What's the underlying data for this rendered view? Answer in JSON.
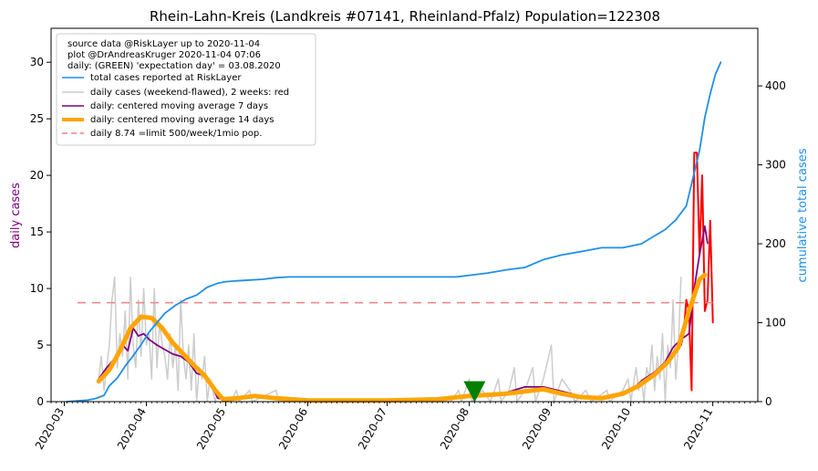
{
  "chart_data": {
    "type": "line",
    "title": "Rhein-Lahn-Kreis (Landkreis #07141, Rheinland-Pfalz) Population=122308",
    "ylabel_left": "daily cases",
    "ylabel_right": "cumulative total cases",
    "x_range": [
      "2020-02-25",
      "2020-11-18"
    ],
    "x_ticks": [
      "2020-03",
      "2020-04",
      "2020-05",
      "2020-06",
      "2020-07",
      "2020-08",
      "2020-09",
      "2020-10",
      "2020-11"
    ],
    "y_left_range": [
      0,
      33
    ],
    "y_left_ticks": [
      0,
      5,
      10,
      15,
      20,
      25,
      30
    ],
    "y_right_range": [
      0,
      473
    ],
    "y_right_ticks": [
      0,
      100,
      200,
      300,
      400
    ],
    "legend_info": [
      "source data @RiskLayer up to 2020-11-04",
      "plot @DrAndreasKruger 2020-11-04 07:06",
      "daily: (GREEN) 'expectation day' = 03.08.2020"
    ],
    "legend_placement": "top-left",
    "colors": {
      "total": "#1f8fe8",
      "daily": "#cccccc",
      "daily_recent": "#ff0000",
      "ma7": "#800080",
      "ma14": "#ffa500",
      "limit": "#f08080",
      "marker": "#008000"
    },
    "series": [
      {
        "name": "total cases reported at RiskLayer",
        "axis": "right",
        "points": [
          [
            "2020-03-02",
            0
          ],
          [
            "2020-03-10",
            2
          ],
          [
            "2020-03-13",
            4
          ],
          [
            "2020-03-16",
            8
          ],
          [
            "2020-03-18",
            20
          ],
          [
            "2020-03-21",
            30
          ],
          [
            "2020-03-24",
            45
          ],
          [
            "2020-03-27",
            58
          ],
          [
            "2020-03-30",
            72
          ],
          [
            "2020-04-02",
            88
          ],
          [
            "2020-04-05",
            100
          ],
          [
            "2020-04-08",
            112
          ],
          [
            "2020-04-12",
            122
          ],
          [
            "2020-04-16",
            130
          ],
          [
            "2020-04-20",
            135
          ],
          [
            "2020-04-24",
            145
          ],
          [
            "2020-04-28",
            150
          ],
          [
            "2020-05-01",
            152
          ],
          [
            "2020-05-05",
            153
          ],
          [
            "2020-05-10",
            154
          ],
          [
            "2020-05-15",
            155
          ],
          [
            "2020-05-20",
            157
          ],
          [
            "2020-05-25",
            158
          ],
          [
            "2020-06-01",
            158
          ],
          [
            "2020-06-15",
            158
          ],
          [
            "2020-07-01",
            158
          ],
          [
            "2020-07-15",
            158
          ],
          [
            "2020-07-27",
            158
          ],
          [
            "2020-08-01",
            160
          ],
          [
            "2020-08-08",
            163
          ],
          [
            "2020-08-15",
            167
          ],
          [
            "2020-08-22",
            170
          ],
          [
            "2020-08-29",
            180
          ],
          [
            "2020-09-05",
            186
          ],
          [
            "2020-09-12",
            190
          ],
          [
            "2020-09-20",
            195
          ],
          [
            "2020-09-28",
            195
          ],
          [
            "2020-10-05",
            200
          ],
          [
            "2020-10-10",
            210
          ],
          [
            "2020-10-14",
            218
          ],
          [
            "2020-10-18",
            230
          ],
          [
            "2020-10-22",
            248
          ],
          [
            "2020-10-25",
            290
          ],
          [
            "2020-10-27",
            318
          ],
          [
            "2020-10-29",
            360
          ],
          [
            "2020-10-31",
            390
          ],
          [
            "2020-11-02",
            415
          ],
          [
            "2020-11-04",
            430
          ]
        ]
      },
      {
        "name": "daily cases (weekend-flawed), 2 weeks: red",
        "axis": "left",
        "points": [
          [
            "2020-03-14",
            2
          ],
          [
            "2020-03-15",
            4
          ],
          [
            "2020-03-16",
            1
          ],
          [
            "2020-03-17",
            3
          ],
          [
            "2020-03-18",
            5
          ],
          [
            "2020-03-19",
            9
          ],
          [
            "2020-03-20",
            11
          ],
          [
            "2020-03-21",
            3
          ],
          [
            "2020-03-22",
            6
          ],
          [
            "2020-03-23",
            4
          ],
          [
            "2020-03-24",
            8
          ],
          [
            "2020-03-25",
            2
          ],
          [
            "2020-03-26",
            11
          ],
          [
            "2020-03-27",
            5
          ],
          [
            "2020-03-28",
            3
          ],
          [
            "2020-03-29",
            9
          ],
          [
            "2020-03-30",
            4
          ],
          [
            "2020-03-31",
            10
          ],
          [
            "2020-04-01",
            5
          ],
          [
            "2020-04-02",
            6
          ],
          [
            "2020-04-03",
            2
          ],
          [
            "2020-04-04",
            10
          ],
          [
            "2020-04-05",
            3
          ],
          [
            "2020-04-06",
            7
          ],
          [
            "2020-04-07",
            5
          ],
          [
            "2020-04-08",
            4
          ],
          [
            "2020-04-09",
            2
          ],
          [
            "2020-04-10",
            6
          ],
          [
            "2020-04-11",
            3
          ],
          [
            "2020-04-12",
            5
          ],
          [
            "2020-04-13",
            1
          ],
          [
            "2020-04-14",
            9
          ],
          [
            "2020-04-15",
            4
          ],
          [
            "2020-04-16",
            2
          ],
          [
            "2020-04-17",
            5
          ],
          [
            "2020-04-18",
            1
          ],
          [
            "2020-04-19",
            6
          ],
          [
            "2020-04-20",
            0
          ],
          [
            "2020-04-21",
            3
          ],
          [
            "2020-04-22",
            2
          ],
          [
            "2020-04-23",
            4
          ],
          [
            "2020-04-24",
            0
          ],
          [
            "2020-04-25",
            2
          ],
          [
            "2020-04-26",
            1
          ],
          [
            "2020-04-27",
            0
          ],
          [
            "2020-04-28",
            1
          ],
          [
            "2020-04-30",
            0
          ],
          [
            "2020-05-03",
            0
          ],
          [
            "2020-05-05",
            1
          ],
          [
            "2020-05-06",
            0
          ],
          [
            "2020-05-10",
            1
          ],
          [
            "2020-05-11",
            0
          ],
          [
            "2020-05-20",
            1
          ],
          [
            "2020-05-21",
            0
          ],
          [
            "2020-06-01",
            0
          ],
          [
            "2020-07-01",
            0
          ],
          [
            "2020-07-25",
            0
          ],
          [
            "2020-07-28",
            1
          ],
          [
            "2020-07-29",
            0
          ],
          [
            "2020-08-01",
            2
          ],
          [
            "2020-08-02",
            0
          ],
          [
            "2020-08-06",
            1
          ],
          [
            "2020-08-09",
            0
          ],
          [
            "2020-08-12",
            2
          ],
          [
            "2020-08-13",
            0
          ],
          [
            "2020-08-16",
            1
          ],
          [
            "2020-08-18",
            3
          ],
          [
            "2020-08-19",
            0
          ],
          [
            "2020-08-22",
            1
          ],
          [
            "2020-08-25",
            3
          ],
          [
            "2020-08-26",
            0
          ],
          [
            "2020-08-29",
            2
          ],
          [
            "2020-09-01",
            5
          ],
          [
            "2020-09-02",
            0
          ],
          [
            "2020-09-05",
            2
          ],
          [
            "2020-09-08",
            1
          ],
          [
            "2020-09-10",
            0
          ],
          [
            "2020-09-14",
            1
          ],
          [
            "2020-09-16",
            0
          ],
          [
            "2020-09-22",
            1
          ],
          [
            "2020-09-23",
            0
          ],
          [
            "2020-09-28",
            1
          ],
          [
            "2020-09-30",
            2
          ],
          [
            "2020-10-01",
            0
          ],
          [
            "2020-10-03",
            3
          ],
          [
            "2020-10-04",
            1
          ],
          [
            "2020-10-05",
            2
          ],
          [
            "2020-10-06",
            0
          ],
          [
            "2020-10-07",
            3
          ],
          [
            "2020-10-08",
            2
          ],
          [
            "2020-10-09",
            5
          ],
          [
            "2020-10-10",
            1
          ],
          [
            "2020-10-11",
            4
          ],
          [
            "2020-10-12",
            2
          ],
          [
            "2020-10-13",
            6
          ],
          [
            "2020-10-14",
            0
          ],
          [
            "2020-10-15",
            5
          ],
          [
            "2020-10-16",
            3
          ],
          [
            "2020-10-17",
            9
          ],
          [
            "2020-10-18",
            2
          ],
          [
            "2020-10-19",
            5
          ],
          [
            "2020-10-20",
            11
          ]
        ]
      },
      {
        "name": "daily cases last 2 weeks (red)",
        "axis": "left",
        "points": [
          [
            "2020-10-20",
            5
          ],
          [
            "2020-10-21",
            6
          ],
          [
            "2020-10-22",
            9
          ],
          [
            "2020-10-23",
            8
          ],
          [
            "2020-10-24",
            1
          ],
          [
            "2020-10-25",
            22
          ],
          [
            "2020-10-26",
            22
          ],
          [
            "2020-10-27",
            13
          ],
          [
            "2020-10-28",
            20
          ],
          [
            "2020-10-29",
            8
          ],
          [
            "2020-10-30",
            9
          ],
          [
            "2020-10-31",
            16
          ],
          [
            "2020-11-01",
            7
          ]
        ]
      },
      {
        "name": "daily: centered moving average 7 days",
        "axis": "left",
        "points": [
          [
            "2020-03-14",
            2
          ],
          [
            "2020-03-17",
            3
          ],
          [
            "2020-03-20",
            3.8
          ],
          [
            "2020-03-23",
            5
          ],
          [
            "2020-03-25",
            4.5
          ],
          [
            "2020-03-27",
            6.5
          ],
          [
            "2020-03-29",
            5.8
          ],
          [
            "2020-03-31",
            6.0
          ],
          [
            "2020-04-02",
            5.5
          ],
          [
            "2020-04-05",
            5.0
          ],
          [
            "2020-04-08",
            4.6
          ],
          [
            "2020-04-11",
            4.2
          ],
          [
            "2020-04-14",
            4.0
          ],
          [
            "2020-04-17",
            3.5
          ],
          [
            "2020-04-20",
            2.5
          ],
          [
            "2020-04-23",
            2.3
          ],
          [
            "2020-04-26",
            1.2
          ],
          [
            "2020-04-28",
            0.3
          ],
          [
            "2020-05-01",
            0.2
          ],
          [
            "2020-05-10",
            0.5
          ],
          [
            "2020-05-20",
            0.2
          ],
          [
            "2020-06-01",
            0.1
          ],
          [
            "2020-07-01",
            0.1
          ],
          [
            "2020-07-25",
            0.2
          ],
          [
            "2020-08-01",
            0.6
          ],
          [
            "2020-08-08",
            0.7
          ],
          [
            "2020-08-15",
            0.8
          ],
          [
            "2020-08-22",
            1.3
          ],
          [
            "2020-08-29",
            1.3
          ],
          [
            "2020-09-05",
            0.9
          ],
          [
            "2020-09-12",
            0.5
          ],
          [
            "2020-09-20",
            0.3
          ],
          [
            "2020-09-28",
            0.6
          ],
          [
            "2020-10-02",
            1.2
          ],
          [
            "2020-10-06",
            2.0
          ],
          [
            "2020-10-10",
            2.6
          ],
          [
            "2020-10-14",
            3.5
          ],
          [
            "2020-10-17",
            4.8
          ],
          [
            "2020-10-20",
            5.5
          ],
          [
            "2020-10-23",
            6.0
          ],
          [
            "2020-10-25",
            10
          ],
          [
            "2020-10-27",
            13
          ],
          [
            "2020-10-29",
            15.5
          ],
          [
            "2020-10-30",
            14
          ]
        ]
      },
      {
        "name": "daily: centered moving average 14 days",
        "axis": "left",
        "points": [
          [
            "2020-03-14",
            1.8
          ],
          [
            "2020-03-18",
            2.8
          ],
          [
            "2020-03-22",
            4.5
          ],
          [
            "2020-03-26",
            6.5
          ],
          [
            "2020-03-30",
            7.5
          ],
          [
            "2020-04-03",
            7.4
          ],
          [
            "2020-04-07",
            6.5
          ],
          [
            "2020-04-11",
            5.2
          ],
          [
            "2020-04-15",
            4.2
          ],
          [
            "2020-04-19",
            3.2
          ],
          [
            "2020-04-23",
            2.3
          ],
          [
            "2020-04-27",
            1.0
          ],
          [
            "2020-04-30",
            0.2
          ],
          [
            "2020-05-05",
            0.3
          ],
          [
            "2020-05-12",
            0.5
          ],
          [
            "2020-05-20",
            0.3
          ],
          [
            "2020-06-01",
            0.1
          ],
          [
            "2020-06-15",
            0.1
          ],
          [
            "2020-07-01",
            0.1
          ],
          [
            "2020-07-20",
            0.2
          ],
          [
            "2020-08-01",
            0.5
          ],
          [
            "2020-08-08",
            0.6
          ],
          [
            "2020-08-15",
            0.7
          ],
          [
            "2020-08-22",
            0.9
          ],
          [
            "2020-08-29",
            1.1
          ],
          [
            "2020-09-05",
            0.7
          ],
          [
            "2020-09-12",
            0.4
          ],
          [
            "2020-09-20",
            0.3
          ],
          [
            "2020-09-28",
            0.7
          ],
          [
            "2020-10-04",
            1.4
          ],
          [
            "2020-10-10",
            2.4
          ],
          [
            "2020-10-15",
            3.5
          ],
          [
            "2020-10-19",
            4.8
          ],
          [
            "2020-10-23",
            8.0
          ],
          [
            "2020-10-27",
            10.8
          ],
          [
            "2020-10-29",
            11.2
          ]
        ]
      }
    ],
    "limit_line": {
      "name": "daily 8.74 =limit 500/week/1mio pop.",
      "value": 8.74,
      "x_range": [
        "2020-03-06",
        "2020-11-01"
      ]
    },
    "expectation_day": {
      "date": "2020-08-03",
      "value": 0.6
    }
  }
}
